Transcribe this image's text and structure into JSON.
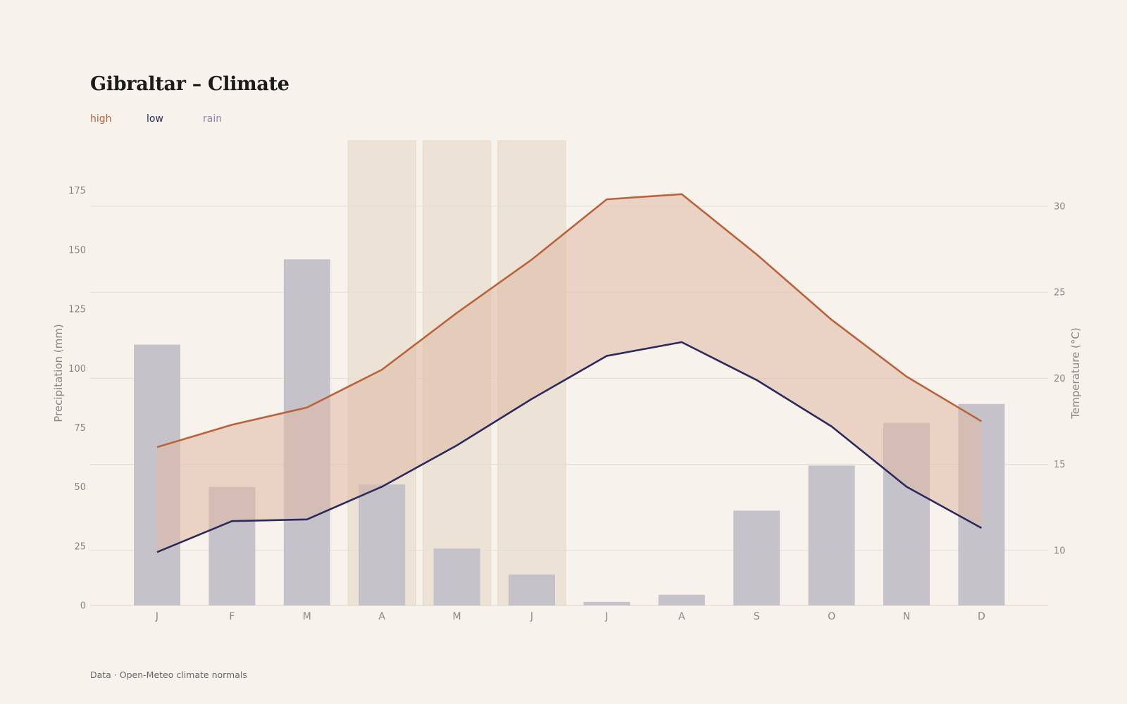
{
  "page": {
    "title": "Gibraltar – Climate",
    "source": "Data · Open-Meteo climate normals"
  },
  "legend": [
    {
      "label": "high",
      "color": "#b9633d"
    },
    {
      "label": "low",
      "color": "#2c2a5c"
    },
    {
      "label": "rain",
      "color": "#8c8aa8"
    }
  ],
  "chart_data": {
    "type": "bar",
    "title": "Gibraltar – Climate",
    "categories": [
      "J",
      "F",
      "M",
      "A",
      "M",
      "J",
      "J",
      "A",
      "S",
      "O",
      "N",
      "D"
    ],
    "series": [
      {
        "name": "rain",
        "type": "bar",
        "axis": "left",
        "color": "#c2bfc8",
        "values": [
          110,
          50,
          146,
          51,
          24,
          13,
          1.5,
          4.5,
          40,
          59,
          77,
          85
        ]
      },
      {
        "name": "high",
        "type": "line",
        "axis": "right",
        "color": "#b9633d",
        "values": [
          16.0,
          17.3,
          18.3,
          20.5,
          23.8,
          26.9,
          30.4,
          30.7,
          27.2,
          23.4,
          20.1,
          17.5
        ]
      },
      {
        "name": "low",
        "type": "line",
        "axis": "right",
        "color": "#2c2a5c",
        "values": [
          9.9,
          11.7,
          11.8,
          13.7,
          16.1,
          18.8,
          21.3,
          22.1,
          19.9,
          17.2,
          13.7,
          11.3
        ]
      }
    ],
    "band_between": [
      "low",
      "high"
    ],
    "band_color": "#e0baa4",
    "highlighted_categories": [
      3,
      4,
      5
    ],
    "highlight_color": "#ece3d6",
    "ylabel_left": "Precipitation (mm)",
    "ylabel_right": "Temperature (°C)",
    "ylim_left": [
      0,
      196
    ],
    "yticks_left": [
      0,
      25,
      50,
      75,
      100,
      125,
      150,
      175
    ],
    "ylim_right": [
      6.8,
      33.8
    ],
    "yticks_right": [
      10,
      15,
      20,
      25,
      30
    ],
    "grid": true,
    "legend_position": "top-left"
  }
}
